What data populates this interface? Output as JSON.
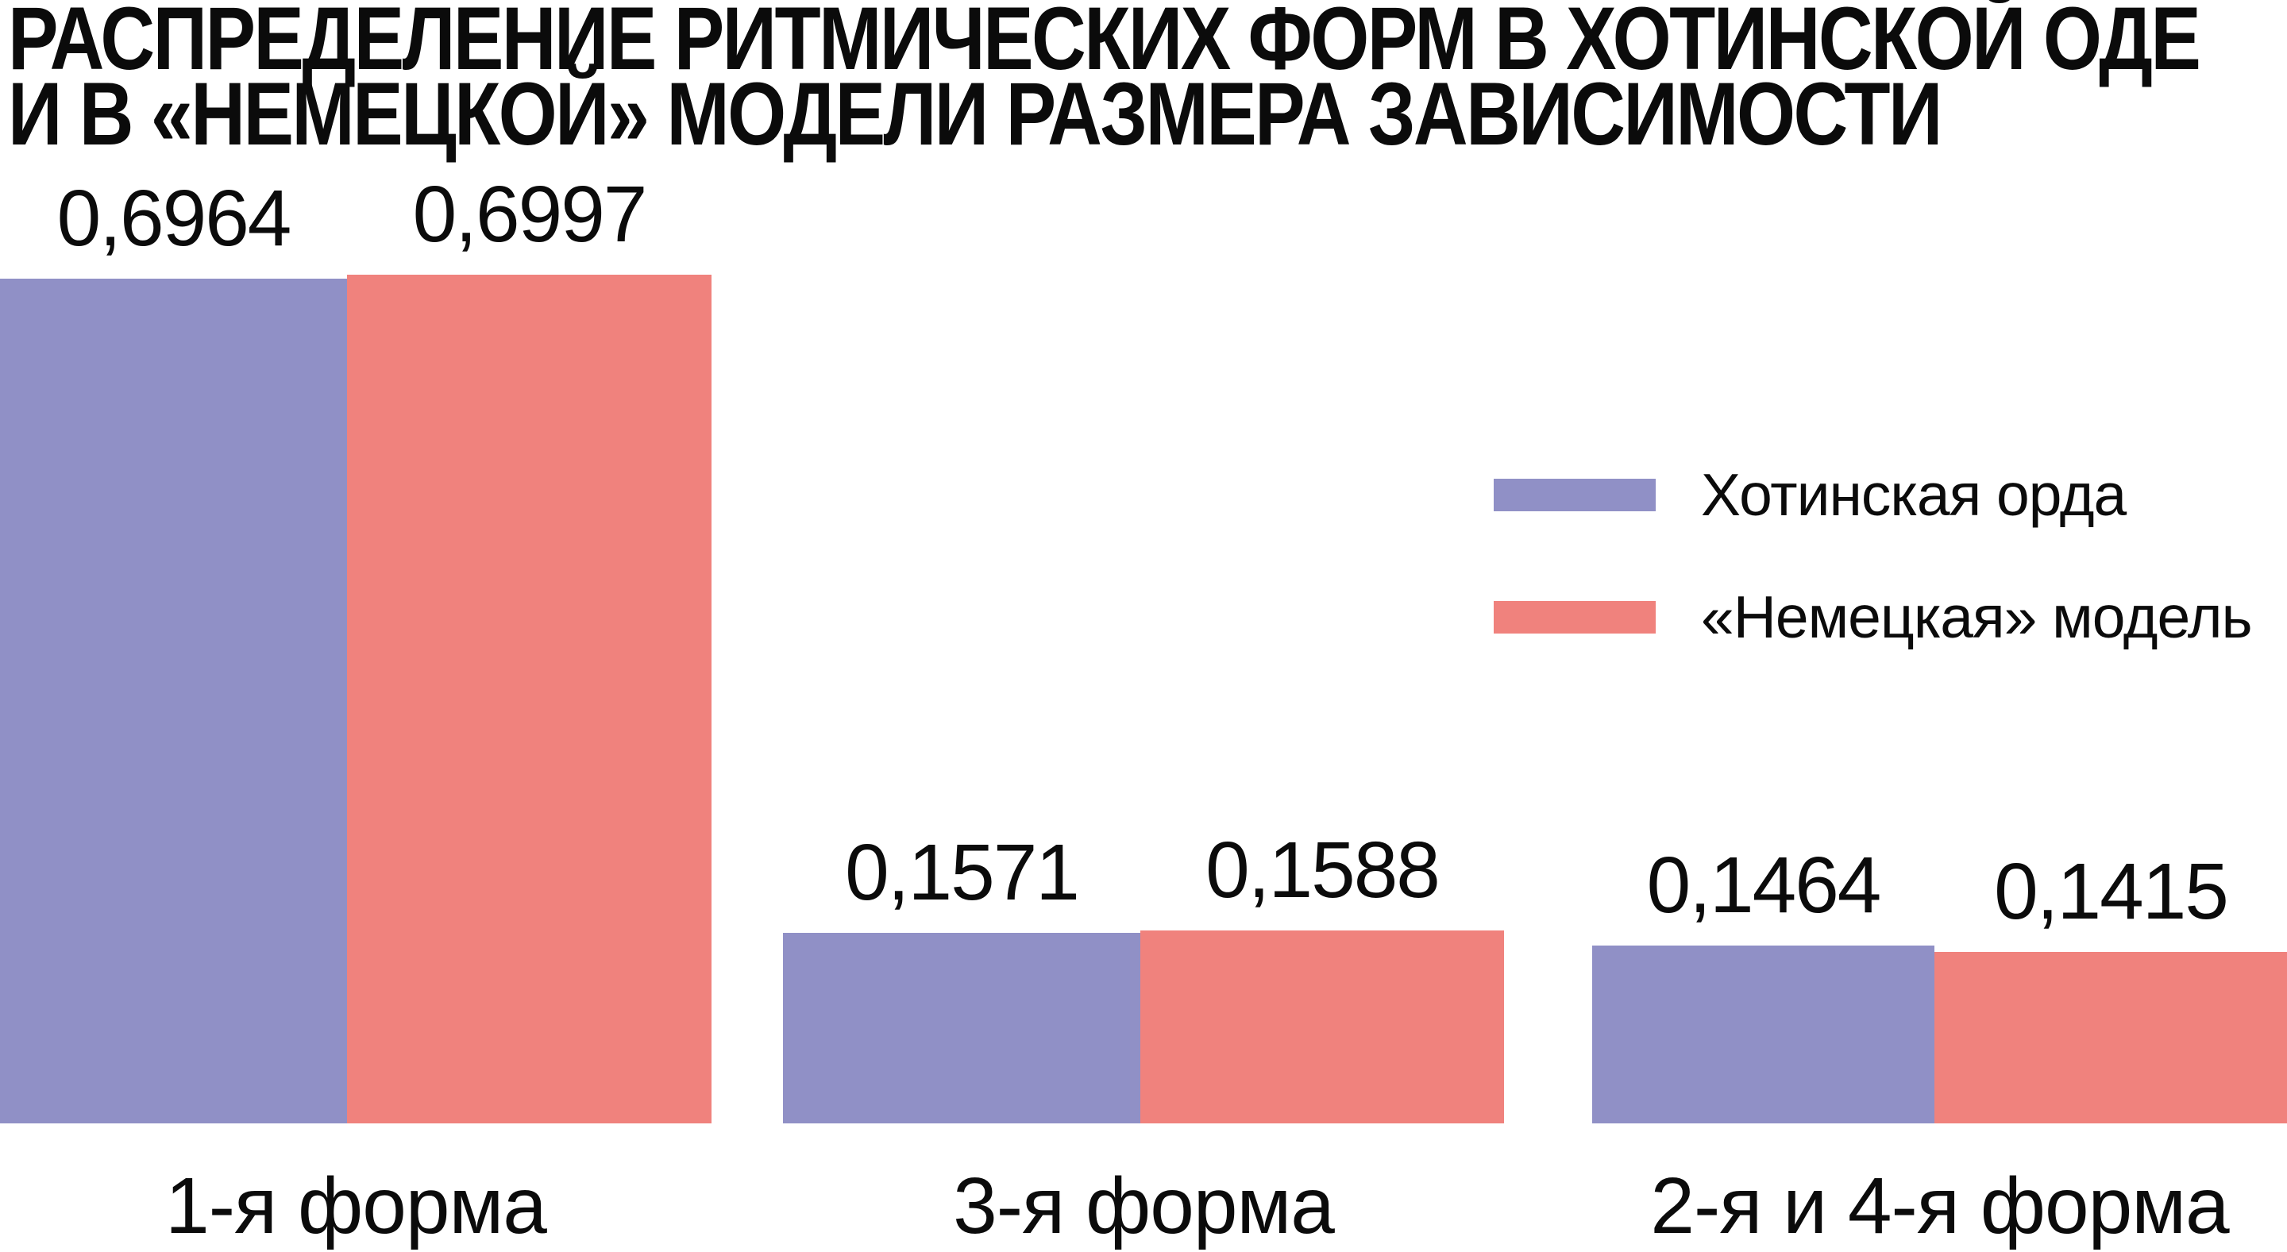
{
  "title": {
    "line1": "РАСПРЕДЕЛЕНИЕ РИТМИЧЕСКИХ ФОРМ В ХОТИНСКОЙ ОДЕ",
    "line2": "И В «НЕМЕЦКОЙ» МОДЕЛИ РАЗМЕРА ЗАВИСИМОСТИ"
  },
  "colors": {
    "series1": "#9090C6",
    "series2": "#F0827D",
    "text": "#0B0B0B",
    "background": "#FFFFFF"
  },
  "legend": {
    "items": [
      {
        "label": "Хотинская орда",
        "color": "#9090C6"
      },
      {
        "label": "«Немецкая» модель",
        "color": "#F0827D"
      }
    ]
  },
  "chart_data": {
    "type": "bar",
    "title": "РАСПРЕДЕЛЕНИЕ РИТМИЧЕСКИХ ФОРМ В ХОТИНСКОЙ ОДЕ И В «НЕМЕЦКОЙ» МОДЕЛИ РАЗМЕРА ЗАВИСИМОСТИ",
    "categories": [
      "1-я форма",
      "3-я форма",
      "2-я и 4-я форма"
    ],
    "series": [
      {
        "name": "Хотинская орда",
        "color": "#9090C6",
        "values": [
          0.6964,
          0.1571,
          0.1464
        ],
        "value_labels": [
          "0,6964",
          "0,1571",
          "0,1464"
        ]
      },
      {
        "name": "«Немецкая» модель",
        "color": "#F0827D",
        "values": [
          0.6997,
          0.1588,
          0.1415
        ],
        "value_labels": [
          "0,6997",
          "0,1588",
          "0,1415"
        ]
      }
    ],
    "xlabel": "",
    "ylabel": "",
    "ylim": [
      0,
      0.926
    ],
    "grid": false,
    "y_axis_visible": false,
    "decimal_separator": ",",
    "legend_position": "middle-right",
    "value_labels_position": "above-bars"
  }
}
